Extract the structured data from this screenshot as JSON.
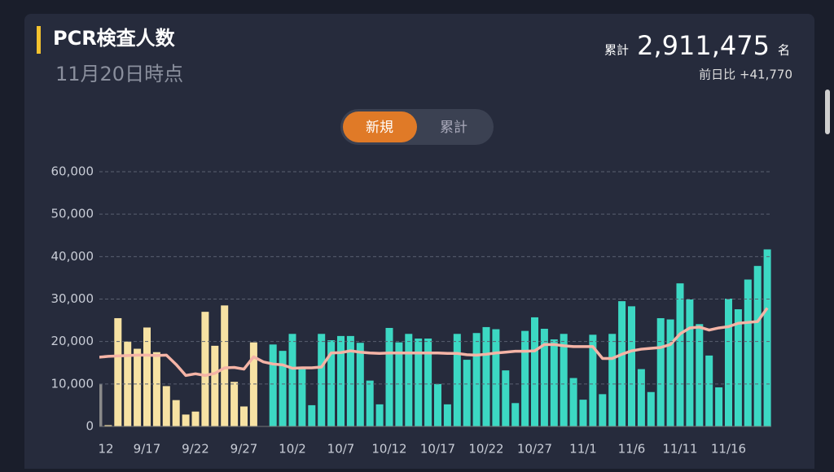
{
  "header": {
    "title": "PCR検査人数",
    "subtitle": "11月20日時点",
    "total_label": "累計",
    "total": "2,911,475",
    "total_unit": "名",
    "diff": "前日比 +41,770"
  },
  "tabs": [
    "新規",
    "累計"
  ],
  "chart_data": {
    "type": "bar",
    "categories": [
      "12",
      null,
      null,
      null,
      null,
      "9/17",
      null,
      null,
      null,
      null,
      "9/22",
      null,
      null,
      null,
      null,
      "9/27",
      null,
      null,
      null,
      null,
      "10/2",
      null,
      null,
      null,
      null,
      "10/7",
      null,
      null,
      null,
      null,
      "10/12",
      null,
      null,
      null,
      null,
      "10/17",
      null,
      null,
      null,
      null,
      "10/22",
      null,
      null,
      null,
      null,
      "10/27",
      null,
      null,
      null,
      null,
      "11/1",
      null,
      null,
      null,
      null,
      "11/6",
      null,
      null,
      null,
      null,
      "11/11",
      null,
      null,
      null,
      null,
      "11/16",
      null,
      null,
      null,
      null
    ],
    "series": [
      {
        "type": "bar",
        "color": "#8a8a8a",
        "values": [
          10000,
          null,
          null,
          null,
          null,
          null,
          null,
          null,
          null,
          null,
          null,
          null,
          null,
          null,
          null,
          null,
          null,
          null,
          null,
          null,
          null,
          null,
          null,
          null,
          null,
          null,
          null,
          null,
          null,
          null,
          null,
          null,
          null,
          null,
          null,
          null,
          null,
          null,
          null,
          null,
          null,
          null,
          null,
          null,
          null,
          null,
          null,
          null,
          null,
          null,
          null,
          null,
          null,
          null,
          null,
          null,
          null,
          null,
          null,
          null,
          null,
          null,
          null,
          null,
          null,
          null,
          null,
          null,
          null,
          null
        ]
      },
      {
        "type": "bar",
        "color": "#f7e2a3",
        "values": [
          null,
          300,
          25500,
          20000,
          18300,
          23300,
          17500,
          9500,
          6200,
          2800,
          3500,
          27000,
          19000,
          28500,
          10500,
          4700,
          19800,
          null,
          null,
          null,
          null,
          null,
          null,
          null,
          null,
          null,
          null,
          null,
          null,
          null,
          null,
          null,
          null,
          null,
          null,
          null,
          null,
          null,
          null,
          null,
          null,
          null,
          null,
          null,
          null,
          null,
          null,
          null,
          null,
          null,
          null,
          null,
          null,
          null,
          null,
          null,
          null,
          null,
          null,
          null,
          null,
          null,
          null,
          null,
          null,
          null,
          null,
          null,
          null,
          null
        ]
      },
      {
        "type": "bar",
        "color": "#3cd8c3",
        "values": [
          null,
          null,
          null,
          null,
          null,
          null,
          null,
          null,
          null,
          null,
          null,
          null,
          null,
          null,
          null,
          null,
          null,
          null,
          19300,
          17800,
          21800,
          13700,
          5000,
          21800,
          20300,
          21300,
          21300,
          19700,
          10800,
          5200,
          23200,
          19800,
          21800,
          20700,
          20700,
          10000,
          5200,
          21800,
          15700,
          22000,
          23400,
          22900,
          13200,
          5500,
          22500,
          25700,
          23000,
          20500,
          21800,
          11400,
          6300,
          21600,
          7600,
          21800,
          29500,
          28300,
          13500,
          8100,
          25500,
          25200,
          33700,
          29900,
          24100,
          16700,
          9200,
          30100,
          27600,
          34600,
          37800,
          41700
        ]
      },
      {
        "type": "line",
        "color": "#f5b4a6",
        "values": [
          16300,
          16500,
          16600,
          16700,
          16800,
          16800,
          16700,
          16800,
          14600,
          12000,
          12400,
          12000,
          12500,
          13800,
          13900,
          13500,
          16400,
          15200,
          14700,
          14500,
          13700,
          13800,
          13800,
          14000,
          17300,
          17400,
          17800,
          17500,
          17300,
          17200,
          17300,
          17300,
          17300,
          17300,
          17300,
          17300,
          17200,
          17200,
          16900,
          16800,
          17000,
          17300,
          17500,
          17700,
          17700,
          17800,
          19300,
          19300,
          19000,
          18800,
          18800,
          18800,
          16000,
          16000,
          17000,
          17800,
          18200,
          18400,
          18600,
          19300,
          21800,
          23200,
          23400,
          22700,
          23200,
          23500,
          24300,
          24500,
          24700,
          27900
        ]
      }
    ],
    "ylim": [
      0,
      60000
    ],
    "yticks": [
      0,
      {
        "value": 10000,
        "label": "10,000"
      },
      {
        "value": 20000,
        "label": "20,000"
      },
      {
        "value": 30000,
        "label": "30,000"
      },
      {
        "value": 40000,
        "label": "40,000"
      },
      {
        "value": 50000,
        "label": "50,000"
      },
      {
        "value": 60000,
        "label": "60,000"
      }
    ],
    "grid": true
  }
}
